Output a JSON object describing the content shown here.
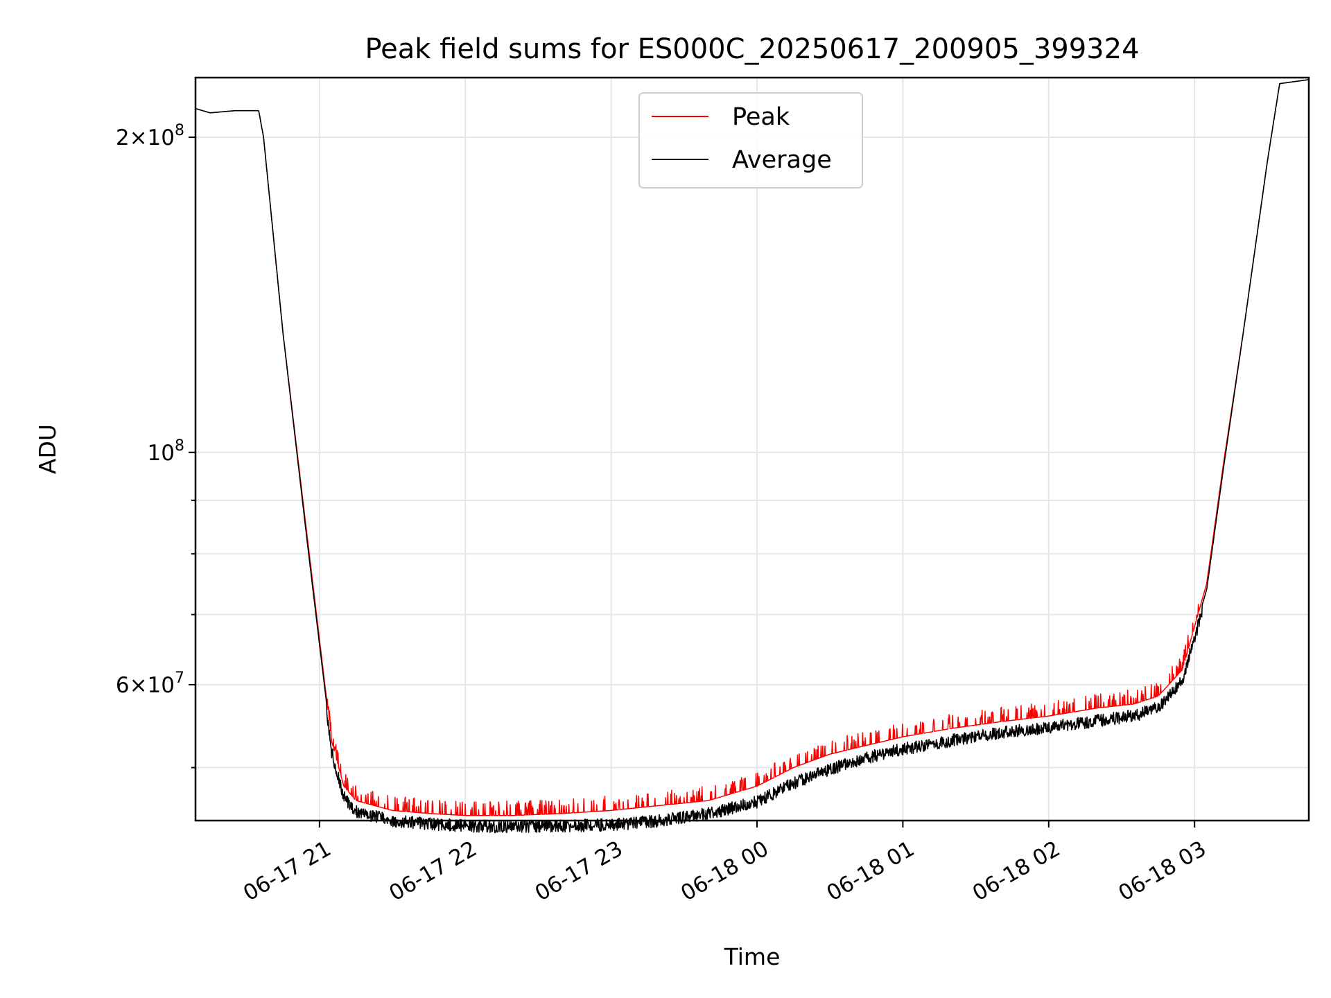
{
  "chart_data": {
    "type": "line",
    "title": "Peak field sums for ES000C_20250617_200905_399324",
    "xlabel": "Time",
    "ylabel": "ADU",
    "yscale": "log",
    "grid": true,
    "legend_placement": "upper center",
    "x_ticks": [
      "06-17 21",
      "06-17 22",
      "06-17 23",
      "06-18 00",
      "06-18 01",
      "06-18 02",
      "06-18 03"
    ],
    "xlim": [
      "2025-06-17 20:09",
      "2025-06-18 03:47"
    ],
    "ylim": [
      44500000,
      228000000
    ],
    "y_major_ticks": [
      {
        "value": 60000000,
        "label_mantissa": "6",
        "label_exp": "7"
      },
      {
        "value": 100000000,
        "label_mantissa": "",
        "label_exp": "8"
      },
      {
        "value": 200000000,
        "label_mantissa": "2",
        "label_exp": "8"
      }
    ],
    "y_minor_ticks": [
      50000000,
      70000000,
      80000000,
      90000000
    ],
    "series": [
      {
        "name": "Peak",
        "color": "#ff0000",
        "x": [
          "2025-06-17 20:09",
          "2025-06-17 20:15",
          "2025-06-17 20:25",
          "2025-06-17 20:35",
          "2025-06-17 20:37",
          "2025-06-17 20:45",
          "2025-06-17 20:55",
          "2025-06-17 21:05",
          "2025-06-17 21:10",
          "2025-06-17 21:15",
          "2025-06-17 21:30",
          "2025-06-17 21:45",
          "2025-06-17 22:00",
          "2025-06-17 22:20",
          "2025-06-17 22:40",
          "2025-06-17 23:00",
          "2025-06-17 23:20",
          "2025-06-17 23:40",
          "2025-06-18 00:00",
          "2025-06-18 00:15",
          "2025-06-18 00:30",
          "2025-06-18 00:45",
          "2025-06-18 01:00",
          "2025-06-18 01:20",
          "2025-06-18 01:40",
          "2025-06-18 02:00",
          "2025-06-18 02:20",
          "2025-06-18 02:35",
          "2025-06-18 02:45",
          "2025-06-18 02:55",
          "2025-06-18 03:05",
          "2025-06-18 03:12",
          "2025-06-18 03:20",
          "2025-06-18 03:30",
          "2025-06-18 03:35",
          "2025-06-18 03:47"
        ],
        "y": [
          213000000,
          211000000,
          212000000,
          212000000,
          200000000,
          130000000,
          83000000,
          53000000,
          48000000,
          46500000,
          45500000,
          45200000,
          45000000,
          45000000,
          45200000,
          45500000,
          46000000,
          46500000,
          48000000,
          50000000,
          51500000,
          52500000,
          53500000,
          54500000,
          55300000,
          56000000,
          57000000,
          57500000,
          58500000,
          62000000,
          75000000,
          98000000,
          130000000,
          190000000,
          225000000,
          227000000
        ]
      },
      {
        "name": "Average",
        "color": "#000000",
        "x": [
          "2025-06-17 20:09",
          "2025-06-17 20:15",
          "2025-06-17 20:25",
          "2025-06-17 20:35",
          "2025-06-17 20:37",
          "2025-06-17 20:45",
          "2025-06-17 20:55",
          "2025-06-17 21:05",
          "2025-06-17 21:10",
          "2025-06-17 21:15",
          "2025-06-17 21:30",
          "2025-06-17 21:45",
          "2025-06-17 22:00",
          "2025-06-17 22:20",
          "2025-06-17 22:40",
          "2025-06-17 23:00",
          "2025-06-17 23:20",
          "2025-06-17 23:40",
          "2025-06-18 00:00",
          "2025-06-18 00:15",
          "2025-06-18 00:30",
          "2025-06-18 00:45",
          "2025-06-18 01:00",
          "2025-06-18 01:20",
          "2025-06-18 01:40",
          "2025-06-18 02:00",
          "2025-06-18 02:20",
          "2025-06-18 02:35",
          "2025-06-18 02:45",
          "2025-06-18 02:55",
          "2025-06-18 03:05",
          "2025-06-18 03:12",
          "2025-06-18 03:20",
          "2025-06-18 03:30",
          "2025-06-18 03:35",
          "2025-06-18 03:47"
        ],
        "y": [
          213000000,
          211000000,
          212000000,
          212000000,
          200000000,
          130000000,
          82000000,
          52500000,
          47500000,
          46000000,
          45100000,
          44800000,
          44600000,
          44500000,
          44600000,
          44700000,
          45100000,
          45800000,
          47000000,
          49000000,
          50500000,
          51800000,
          52800000,
          53800000,
          54700000,
          55400000,
          56200000,
          56800000,
          57800000,
          61500000,
          74000000,
          97000000,
          130000000,
          190000000,
          225000000,
          227000000
        ]
      }
    ]
  }
}
